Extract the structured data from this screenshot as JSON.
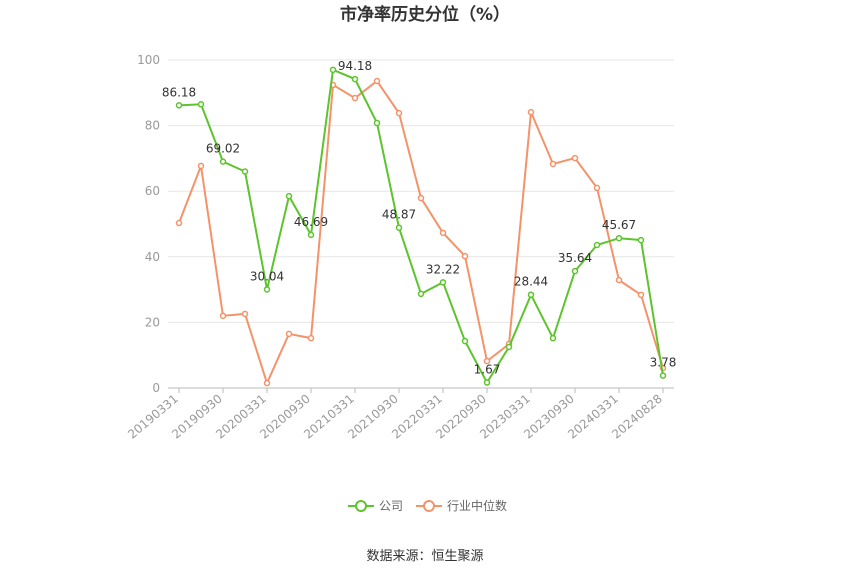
{
  "chart_data": {
    "type": "line",
    "title": "市净率历史分位（%）",
    "categories": [
      "20190331",
      null,
      "20190930",
      null,
      "20200331",
      null,
      "20200930",
      null,
      "20210331",
      null,
      "20210930",
      null,
      "20220331",
      null,
      "20220930",
      null,
      "20230331",
      null,
      "20230930",
      null,
      "20240331",
      null,
      "20240828"
    ],
    "series": [
      {
        "name": "公司",
        "color": "#5cc42c",
        "values": [
          86.18,
          86.5,
          69.02,
          66,
          30.04,
          58.5,
          46.69,
          97,
          94.18,
          80.8,
          48.87,
          28.7,
          32.22,
          14.3,
          1.67,
          12.5,
          28.44,
          15.2,
          35.64,
          43.6,
          45.67,
          45.1,
          3.78
        ],
        "value_labels": [
          "86.18",
          null,
          "69.02",
          null,
          "30.04",
          null,
          "46.69",
          null,
          "94.18",
          null,
          "48.87",
          null,
          "32.22",
          null,
          "1.67",
          null,
          "28.44",
          null,
          "35.64",
          null,
          "45.67",
          null,
          "3.78"
        ]
      },
      {
        "name": "行业中位数",
        "color": "#f4936a",
        "values": [
          50.3,
          67.7,
          22,
          22.6,
          1.5,
          16.5,
          15.2,
          92.4,
          88.4,
          93.6,
          83.8,
          57.9,
          47.3,
          40.2,
          8.2,
          13.4,
          84.1,
          68.3,
          70.1,
          61,
          32.9,
          28.4,
          6.1
        ]
      }
    ],
    "ylim": [
      0,
      100
    ],
    "yticks": [
      0,
      20,
      40,
      60,
      80,
      100
    ],
    "grid": true,
    "legend": "bottom",
    "source": "数据来源：恒生聚源"
  }
}
